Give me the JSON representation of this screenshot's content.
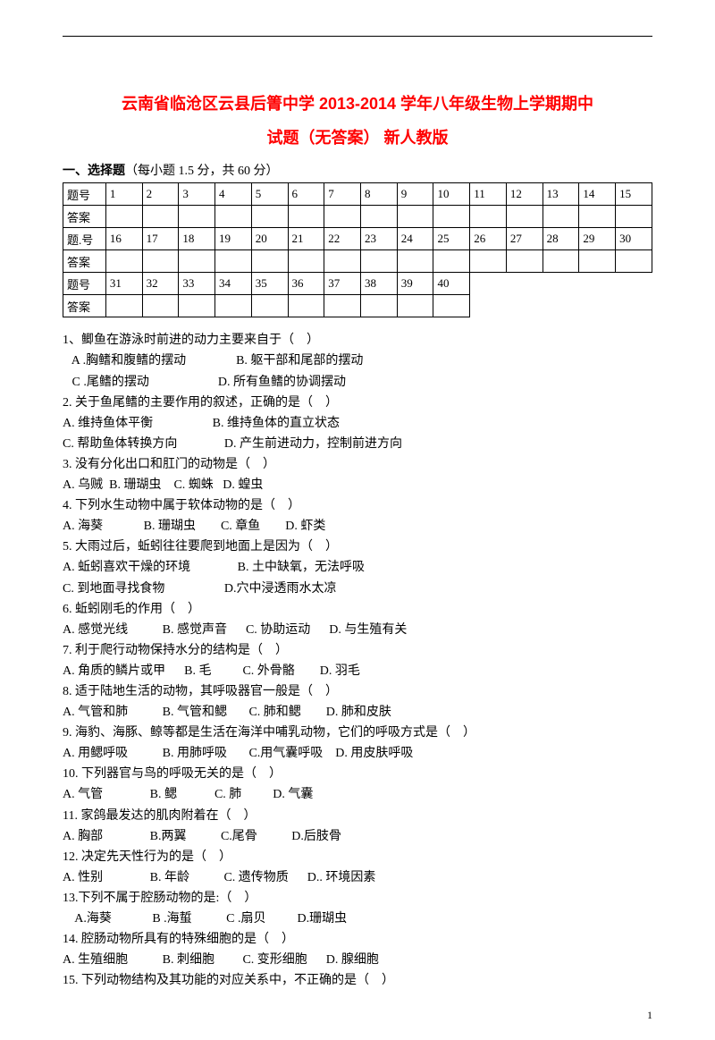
{
  "title_line1": "云南省临沧区云县后箐中学 2013-2014 学年八年级生物上学期期中",
  "title_line2": "试题（无答案）  新人教版",
  "section1_label_bold": "一、选择题",
  "section1_label_rest": "（每小题 1.5 分，共 60 分）",
  "grid": {
    "row_labels": [
      "题号",
      "答案",
      "题.号",
      "答案",
      "题号",
      "答案"
    ],
    "row1": [
      "1",
      "2",
      "3",
      "4",
      "5",
      "6",
      "7",
      "8",
      "9",
      "10",
      "11",
      "12",
      "13",
      "14",
      "15"
    ],
    "row3": [
      "16",
      "17",
      "18",
      "19",
      "20",
      "21",
      "22",
      "23",
      "24",
      "25",
      "26",
      "27",
      "28",
      "29",
      "30"
    ],
    "row5": [
      "31",
      "32",
      "33",
      "34",
      "35",
      "36",
      "37",
      "38",
      "39",
      "40"
    ]
  },
  "questions": [
    "1、鲫鱼在游泳时前进的动力主要来自于（    ）",
    "   A .胸鳍和腹鳍的摆动                B. 躯干部和尾部的摆动",
    "   C .尾鳍的摆动                      D. 所有鱼鳍的协调摆动",
    "2. 关于鱼尾鳍的主要作用的叙述，正确的是（    ）",
    "A. 维持鱼体平衡                   B. 维持鱼体的直立状态",
    "C. 帮助鱼体转换方向               D. 产生前进动力，控制前进方向",
    "3. 没有分化出口和肛门的动物是（    ）",
    "A. 乌贼  B. 珊瑚虫    C. 蜘蛛   D. 蝗虫",
    "4. 下列水生动物中属于软体动物的是（    ）",
    "A. 海葵             B. 珊瑚虫        C. 章鱼        D. 虾类",
    "5. 大雨过后，蚯蚓往往要爬到地面上是因为（    ）",
    "A. 蚯蚓喜欢干燥的环境               B. 土中缺氧，无法呼吸",
    "C. 到地面寻找食物                   D.穴中浸透雨水太凉",
    "6. 蚯蚓刚毛的作用（    ）",
    "A. 感觉光线           B. 感觉声音      C. 协助运动      D. 与生殖有关",
    "7. 利于爬行动物保持水分的结构是（    ）",
    "A. 角质的鳞片或甲      B. 毛          C. 外骨骼        D. 羽毛",
    "8. 适于陆地生活的动物，其呼吸器官一般是（    ）",
    "A. 气管和肺           B. 气管和鳃       C. 肺和鳃        D. 肺和皮肤",
    "9. 海豹、海豚、鲸等都是生活在海洋中哺乳动物，它们的呼吸方式是（    ）",
    "A. 用鳃呼吸           B. 用肺呼吸       C.用气囊呼吸    D. 用皮肤呼吸",
    "10. 下列器官与鸟的呼吸无关的是（    ）",
    "A. 气管               B. 鳃            C. 肺          D. 气囊",
    "11. 家鸽最发达的肌肉附着在（    ）",
    "A. 胸部               B.两翼           C.尾骨           D.后肢骨",
    "12. 决定先天性行为的是（    ）",
    "A. 性别               B. 年龄           C. 遗传物质      D.. 环境因素",
    "13.下列不属于腔肠动物的是:（    ）",
    "    A.海葵             B .海蜇           C .扇贝          D.珊瑚虫",
    "14. 腔肠动物所具有的特殊细胞的是（    ）",
    "A. 生殖细胞           B. 刺细胞         C. 变形细胞      D. 腺细胞",
    "15. 下列动物结构及其功能的对应关系中，不正确的是（    ）"
  ],
  "page_number": "1"
}
